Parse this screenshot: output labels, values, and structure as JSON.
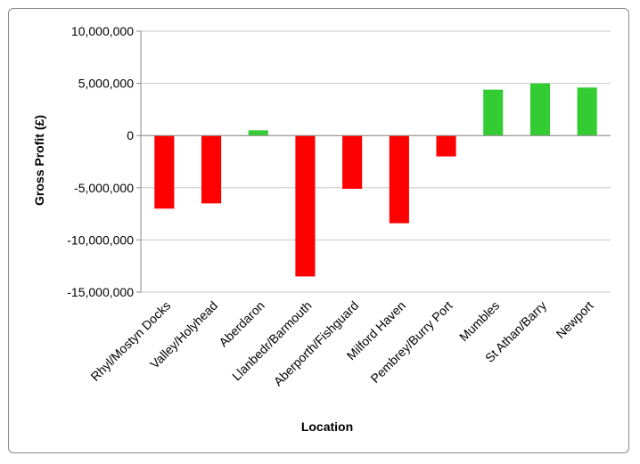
{
  "chart_data": {
    "type": "bar",
    "title": "",
    "xlabel": "Location",
    "ylabel": "Gross Profit (£)",
    "ylim": [
      -15000000,
      10000000
    ],
    "ytick_step": 5000000,
    "ytick_labels": [
      "10,000,000",
      "5,000,000",
      "0",
      "-5,000,000",
      "-10,000,000",
      "-15,000,000"
    ],
    "categories": [
      "Rhyl/Mostyn Docks",
      "Valley/Holyhead",
      "Aberdaron",
      "Llanbedr/Barmouth",
      "Aberporth/Fishguard",
      "Milford Haven",
      "Pembrey/Burry Port",
      "Mumbles",
      "St Athan/Barry",
      "Newport"
    ],
    "values": [
      -7000000,
      -6500000,
      500000,
      -13500000,
      -5100000,
      -8400000,
      -2000000,
      4400000,
      5000000,
      4600000
    ],
    "grid": true,
    "legend": "none",
    "colors": {
      "positive": "#33cc33",
      "negative": "#ff0000",
      "grid": "#c8c8c8",
      "axis": "#8a8a8a"
    }
  }
}
